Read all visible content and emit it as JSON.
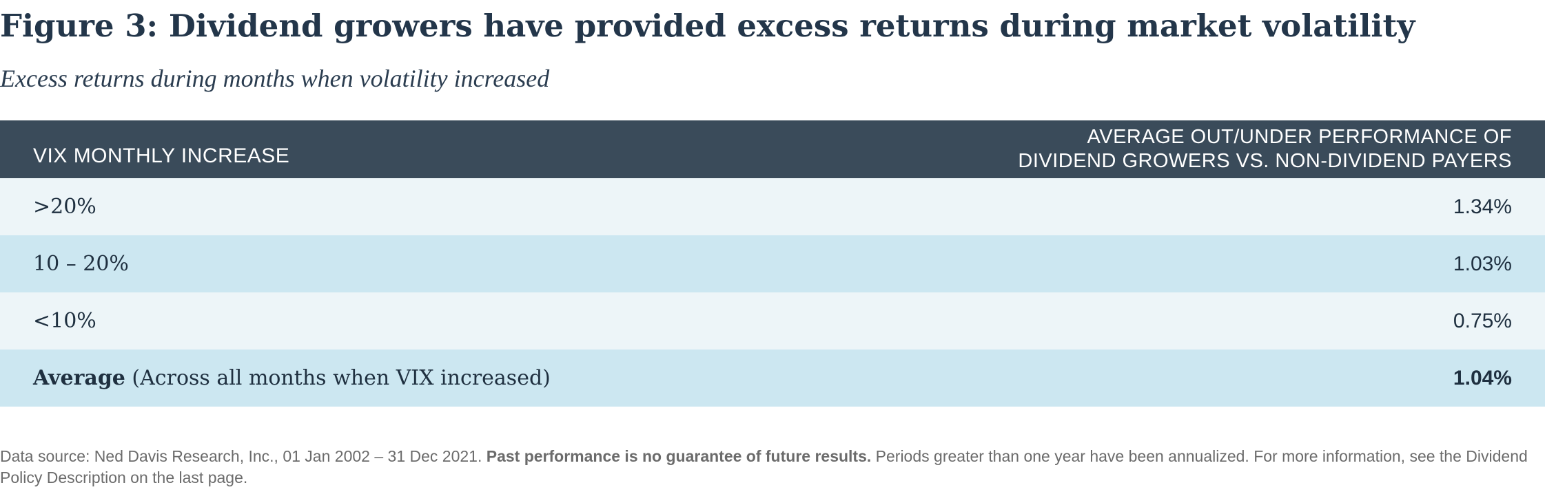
{
  "figure": {
    "title": "Figure 3: Dividend growers have provided excess returns during market volatility",
    "subtitle": "Excess returns during months when volatility increased"
  },
  "table": {
    "header": {
      "left": "VIX MONTHLY INCREASE",
      "right_line1": "AVERAGE OUT/UNDER PERFORMANCE OF",
      "right_line2": "DIVIDEND GROWERS VS. NON-DIVIDEND PAYERS"
    },
    "rows": [
      {
        "label": ">20%",
        "value": "1.34%"
      },
      {
        "label": "10 – 20%",
        "value": "1.03%"
      },
      {
        "label": "<10%",
        "value": "0.75%"
      }
    ],
    "average": {
      "label_bold": "Average",
      "label_rest": " (Across all months when VIX increased)",
      "value": "1.04%"
    },
    "colors": {
      "header_bg": "#3a4b5a",
      "row_light": "#edf5f8",
      "row_dark": "#cce7f1",
      "title_text": "#23364a"
    }
  },
  "footnote": {
    "part1": "Data source: Ned Davis Research, Inc., 01 Jan 2002 – 31 Dec 2021. ",
    "bold": "Past performance is no guarantee of future results.",
    "part2": " Periods greater than one year have been annualized. For more information, see the Dividend Policy Description on the last page."
  }
}
